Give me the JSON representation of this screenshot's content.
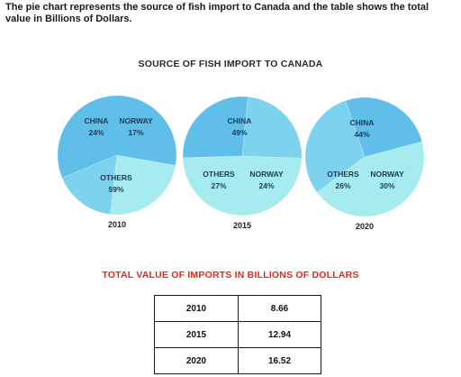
{
  "intro": "The pie chart represents the source of fish import to Canada and the table shows the total value in Billions of Dollars.",
  "chart_data": [
    {
      "type": "pie",
      "title": "SOURCE OF FISH IMPORT TO CANADA",
      "year": "2010",
      "slices": [
        {
          "label": "CHINA",
          "value": 24
        },
        {
          "label": "NORWAY",
          "value": 17
        },
        {
          "label": "OTHERS",
          "value": 59
        }
      ]
    },
    {
      "type": "pie",
      "year": "2015",
      "slices": [
        {
          "label": "CHINA",
          "value": 49
        },
        {
          "label": "OTHERS",
          "value": 27
        },
        {
          "label": "NORWAY",
          "value": 24
        }
      ]
    },
    {
      "type": "pie",
      "year": "2020",
      "slices": [
        {
          "label": "CHINA",
          "value": 44
        },
        {
          "label": "NORWAY",
          "value": 30
        },
        {
          "label": "OTHERS",
          "value": 26
        }
      ]
    },
    {
      "type": "table",
      "title": "TOTAL VALUE OF IMPORTS IN BILLIONS OF DOLLARS",
      "rows": [
        {
          "year": "2010",
          "value": "8.66"
        },
        {
          "year": "2015",
          "value": "12.94"
        },
        {
          "year": "2020",
          "value": "16.52"
        }
      ]
    }
  ],
  "colors": {
    "CHINA": "#a6ecef",
    "NORWAY": "#7dd2ed",
    "OTHERS": "#5fbfe9",
    "title": "#2a2a2a",
    "table_title": "#e02a1c"
  }
}
